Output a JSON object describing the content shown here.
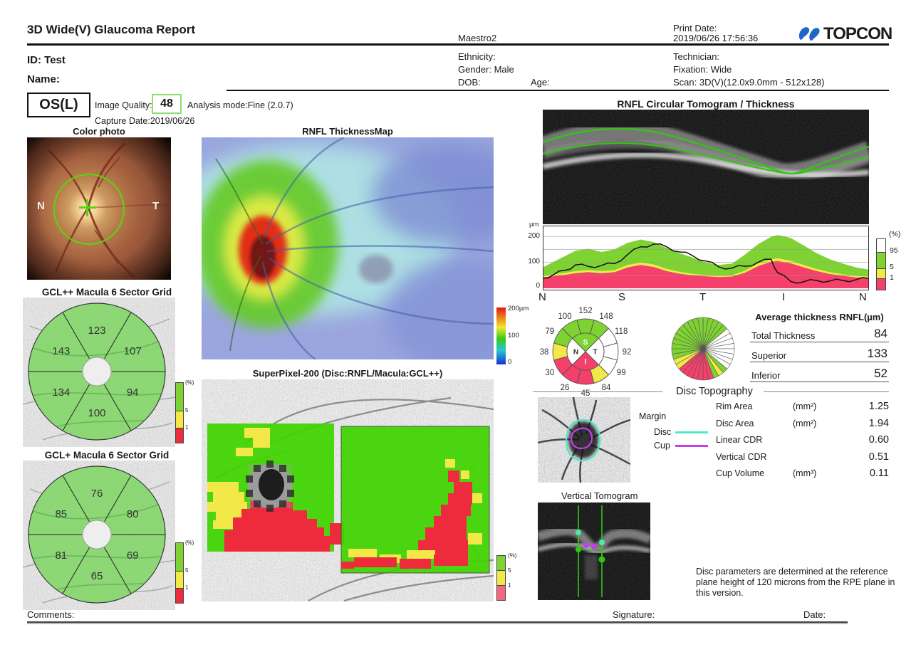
{
  "colors": {
    "green": "#7ed333",
    "yellow": "#f2e949",
    "pink": "#f4406a",
    "white": "#ffffff",
    "grid_green": "#8cdc73",
    "cyan": "#4fe6cb",
    "magenta": "#c43df2",
    "sp_green": "#40d400",
    "sp_red": "#ee2b3c",
    "logo_blue": "#1e66c8"
  },
  "header": {
    "title": "3D Wide(V) Glaucoma Report",
    "device": "Maestro2",
    "print_date_label": "Print Date:",
    "print_date": "2019/06/26 17:56:36",
    "logo_text": "TOPCON",
    "id": "ID: Test",
    "name": "Name:",
    "ethnicity": "Ethnicity:",
    "gender": "Gender: Male",
    "dob": "DOB:",
    "age": "Age:",
    "technician": "Technician:",
    "fixation": "Fixation: Wide",
    "scan": "Scan: 3D(V)(12.0x9.0mm - 512x128)"
  },
  "exam": {
    "eye": "OS(L)",
    "image_quality_label": "Image Quality:",
    "image_quality": "48",
    "analysis_mode": "Analysis mode:Fine (2.0.7)",
    "capture_date": "Capture Date:2019/06/26"
  },
  "titles": {
    "color_photo": "Color photo",
    "thickness_map": "RNFL ThicknessMap",
    "tomogram": "RNFL Circular Tomogram / Thickness",
    "superpixel": "SuperPixel-200 (Disc:RNFL/Macula:GCL++)",
    "gcl_pp": "GCL++ Macula 6 Sector Grid",
    "gcl_p": "GCL+ Macula 6 Sector Grid",
    "disc_topography": "Disc Topography",
    "vertical_tomogram": "Vertical Tomogram"
  },
  "photo_labels": {
    "n": "N",
    "t": "T"
  },
  "legends": {
    "map_scale": {
      "top": "200µm",
      "mid": "100",
      "bottom": "0"
    },
    "pct_small": {
      "pct": "(%)",
      "p5": "5",
      "p1": "1"
    }
  },
  "avg_table": {
    "title": "Average thickness RNFL(µm)",
    "rows": [
      {
        "label": "Total Thickness",
        "value": "84"
      },
      {
        "label": "Superior",
        "value": "133"
      },
      {
        "label": "Inferior",
        "value": "52"
      }
    ]
  },
  "disc_topography": {
    "margin": "Margin",
    "disc": "Disc",
    "cup": "Cup",
    "rows": [
      {
        "label": "Rim Area",
        "unit": "(mm²)",
        "value": "1.25"
      },
      {
        "label": "Disc Area",
        "unit": "(mm²)",
        "value": "1.94"
      },
      {
        "label": "Linear CDR",
        "unit": "",
        "value": "0.60"
      },
      {
        "label": "Vertical CDR",
        "unit": "",
        "value": "0.51"
      },
      {
        "label": "Cup Volume",
        "unit": "(mm³)",
        "value": "0.11"
      }
    ]
  },
  "note": "Disc parameters are determined at the reference plane height of 120 microns from the RPE plane in this version.",
  "footer": {
    "comments": "Comments:",
    "signature": "Signature:",
    "date": "Date:"
  },
  "chart_data": [
    {
      "name": "rnfl_profile",
      "type": "area",
      "title": "RNFL Circular Tomogram / Thickness",
      "ylabel": "µm",
      "yticks": [
        "0",
        "100",
        "200"
      ],
      "ylim": [
        0,
        225
      ],
      "gridlines": [
        50,
        100,
        150,
        200
      ],
      "x_labels": [
        "N",
        "S",
        "T",
        "I",
        "N"
      ],
      "legend": {
        "title": "(%)",
        "bands": [
          {
            "label": "95",
            "color": "#ffffff"
          },
          {
            "label": "5",
            "color": "#7ed333"
          },
          {
            "label": "1",
            "color": "#f2e949"
          },
          {
            "label": "",
            "color": "#f4406a"
          }
        ]
      },
      "x": [
        0,
        0.03,
        0.07,
        0.1,
        0.14,
        0.18,
        0.22,
        0.26,
        0.3,
        0.34,
        0.38,
        0.42,
        0.46,
        0.5,
        0.54,
        0.58,
        0.62,
        0.66,
        0.7,
        0.72,
        0.76,
        0.8,
        0.84,
        0.88,
        0.92,
        0.96,
        1.0
      ],
      "red_top": [
        42,
        46,
        52,
        58,
        62,
        58,
        62,
        80,
        90,
        82,
        66,
        56,
        50,
        46,
        43,
        45,
        60,
        85,
        102,
        105,
        96,
        80,
        66,
        55,
        48,
        42,
        40
      ],
      "yellow_top": [
        48,
        53,
        60,
        66,
        70,
        66,
        70,
        90,
        100,
        92,
        75,
        63,
        56,
        51,
        48,
        50,
        68,
        96,
        112,
        116,
        106,
        90,
        74,
        62,
        54,
        48,
        45
      ],
      "green_top": [
        80,
        100,
        125,
        145,
        152,
        140,
        150,
        175,
        188,
        178,
        155,
        135,
        118,
        100,
        90,
        95,
        130,
        170,
        198,
        205,
        194,
        165,
        135,
        112,
        95,
        80,
        72
      ],
      "line": [
        40,
        50,
        70,
        90,
        84,
        88,
        95,
        130,
        160,
        170,
        160,
        140,
        125,
        105,
        82,
        78,
        85,
        100,
        112,
        60,
        26,
        25,
        30,
        28,
        30,
        33,
        38
      ]
    },
    {
      "name": "rnfl_sectors",
      "type": "donut-sectors",
      "values": [
        "152",
        "148",
        "118",
        "92",
        "99",
        "84",
        "45",
        "26",
        "30",
        "38",
        "79",
        "100"
      ],
      "colors": [
        "green",
        "green",
        "white",
        "white",
        "white",
        "yellow",
        "pink",
        "pink",
        "pink",
        "yellow",
        "green",
        "green"
      ],
      "inner": [
        {
          "label": "S",
          "color": "green"
        },
        {
          "label": "T",
          "color": "white"
        },
        {
          "label": "I",
          "color": "pink"
        },
        {
          "label": "N",
          "color": "white"
        }
      ]
    },
    {
      "name": "clock_chart",
      "type": "pie",
      "wedge_colors": [
        "green",
        "green",
        "green",
        "green",
        "green",
        "white",
        "white",
        "white",
        "white",
        "white",
        "white",
        "white",
        "white",
        "green",
        "yellow",
        "green",
        "pink",
        "pink",
        "pink",
        "pink",
        "pink",
        "pink",
        "pink",
        "yellow",
        "yellow",
        "green",
        "green",
        "green",
        "green",
        "green",
        "green",
        "green",
        "green",
        "green",
        "green",
        "green"
      ]
    },
    {
      "name": "gcl_pp",
      "type": "sector-grid",
      "title": "GCL++ Macula 6 Sector Grid",
      "values": {
        "top": "123",
        "upper_right": "107",
        "lower_right": "94",
        "bottom": "100",
        "lower_left": "134",
        "upper_left": "143"
      }
    },
    {
      "name": "gcl_p",
      "type": "sector-grid",
      "title": "GCL+ Macula 6 Sector Grid",
      "values": {
        "top": "76",
        "upper_right": "80",
        "lower_right": "69",
        "bottom": "65",
        "lower_left": "81",
        "upper_left": "85"
      }
    }
  ]
}
